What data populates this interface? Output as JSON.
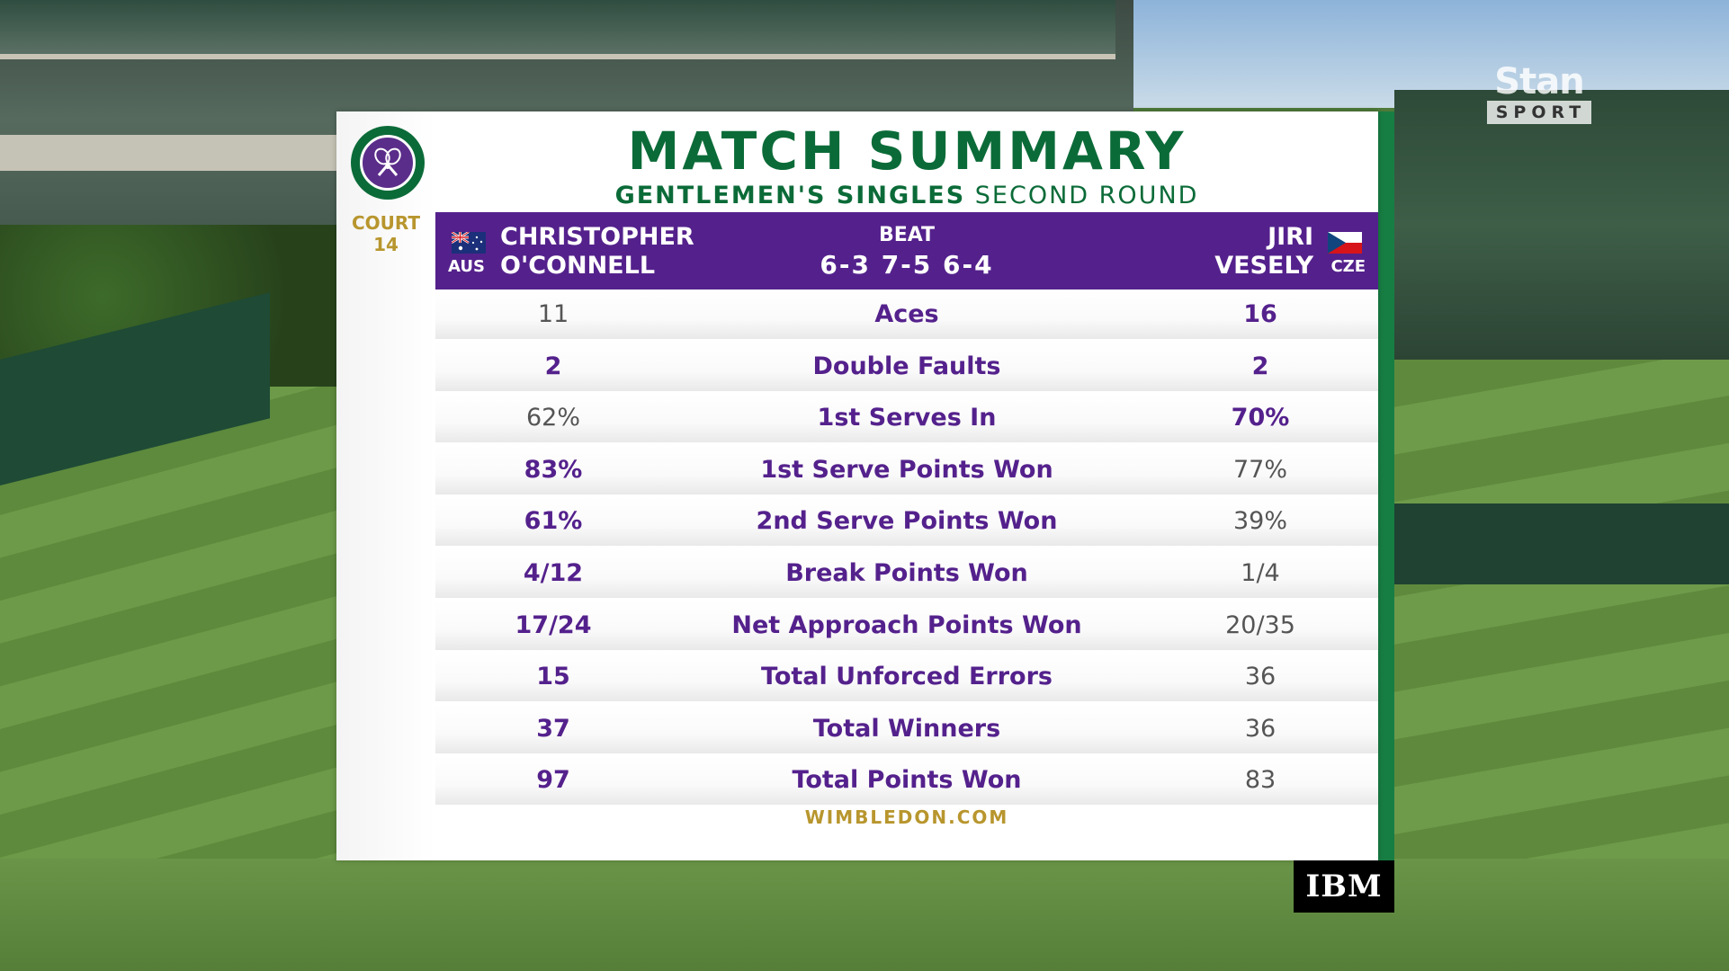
{
  "broadcaster": {
    "name": "Stan",
    "sub": "SPORT"
  },
  "sponsor": "IBM",
  "venue": {
    "court_label": "COURT",
    "court_number": "14"
  },
  "title": "MATCH SUMMARY",
  "subtitle": {
    "event": "GENTLEMEN'S SINGLES",
    "round": "SECOND ROUND"
  },
  "match": {
    "player1": {
      "first": "CHRISTOPHER",
      "last": "O'CONNELL",
      "country": "AUS"
    },
    "player2": {
      "first": "JIRI",
      "last": "VESELY",
      "country": "CZE"
    },
    "result": "BEAT",
    "score": "6-3 7-5 6-4"
  },
  "stats": [
    {
      "label": "Aces",
      "p1": "11",
      "p2": "16",
      "leader": "p2"
    },
    {
      "label": "Double Faults",
      "p1": "2",
      "p2": "2",
      "leader": "both"
    },
    {
      "label": "1st Serves In",
      "p1": "62%",
      "p2": "70%",
      "leader": "p2"
    },
    {
      "label": "1st Serve Points Won",
      "p1": "83%",
      "p2": "77%",
      "leader": "p1"
    },
    {
      "label": "2nd Serve Points Won",
      "p1": "61%",
      "p2": "39%",
      "leader": "p1"
    },
    {
      "label": "Break Points Won",
      "p1": "4/12",
      "p2": "1/4",
      "leader": "p1"
    },
    {
      "label": "Net Approach Points Won",
      "p1": "17/24",
      "p2": "20/35",
      "leader": "p1"
    },
    {
      "label": "Total Unforced Errors",
      "p1": "15",
      "p2": "36",
      "leader": "p1"
    },
    {
      "label": "Total Winners",
      "p1": "37",
      "p2": "36",
      "leader": "p1"
    },
    {
      "label": "Total Points Won",
      "p1": "97",
      "p2": "83",
      "leader": "p1"
    }
  ],
  "footer": "WIMBLEDON.COM",
  "colors": {
    "purple": "#54218c",
    "green": "#0b6b38",
    "gold": "#b8962e"
  }
}
